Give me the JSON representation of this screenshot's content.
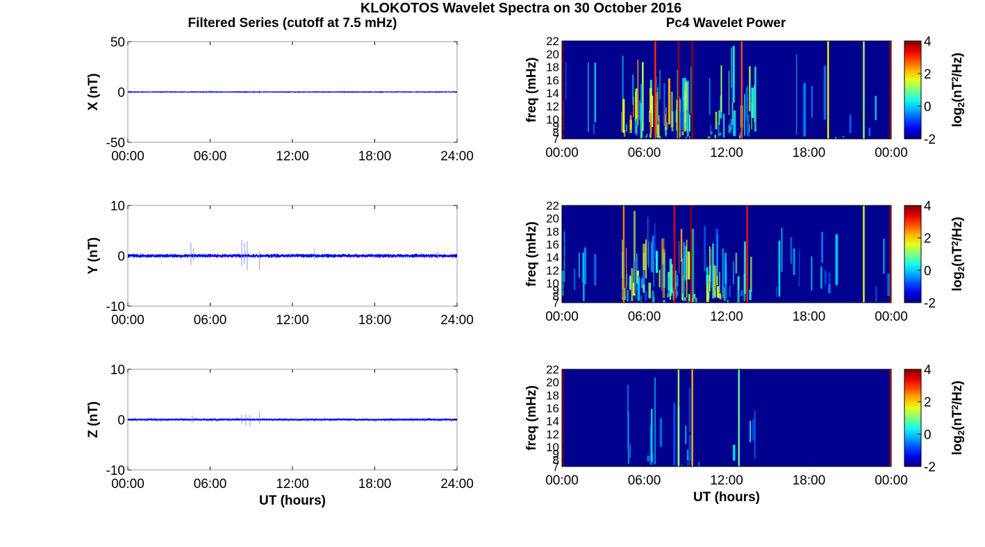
{
  "figure": {
    "title": "KLOKOTOS Wavelet Spectra on 30 October 2016",
    "left_column_title": "Filtered Series (cutoff at 7.5 mHz)",
    "right_column_title": "Pc4 Wavelet Power",
    "x_label": "UT (hours)"
  },
  "colors": {
    "trace": "#0000ff",
    "trace_burst": "#9aa6ff",
    "spectrum_background": "#00008f",
    "axis": "#000000",
    "panel_frame": "#999999"
  },
  "chart_data": [
    {
      "type": "line",
      "id": "x-series",
      "ylabel": "X (nT)",
      "ylim": [
        -50,
        50
      ],
      "yticks": [
        "-50",
        "0",
        "50"
      ],
      "xlim": [
        0,
        24
      ],
      "xticks": [
        "00:00",
        "06:00",
        "12:00",
        "18:00",
        "24:00"
      ],
      "baseline": 0,
      "noise_amplitude": 0.35,
      "bursts": [
        {
          "t": 4.7,
          "min": -0.8,
          "max": 1.0
        },
        {
          "t": 8.3,
          "min": -1.0,
          "max": 1.2
        },
        {
          "t": 8.6,
          "min": -1.2,
          "max": 1.4
        },
        {
          "t": 9.6,
          "min": -1.5,
          "max": 2.5
        },
        {
          "t": 13.6,
          "min": -0.6,
          "max": 0.8
        }
      ]
    },
    {
      "type": "line",
      "id": "y-series",
      "ylabel": "Y (nT)",
      "ylim": [
        -10,
        10
      ],
      "yticks": [
        "-10",
        "0",
        "10"
      ],
      "xlim": [
        0,
        24
      ],
      "xticks": [
        "00:00",
        "06:00",
        "12:00",
        "18:00",
        "24:00"
      ],
      "baseline": 0,
      "noise_amplitude": 0.3,
      "bursts": [
        {
          "t": 4.6,
          "min": -1.8,
          "max": 2.7
        },
        {
          "t": 4.8,
          "min": -0.9,
          "max": 1.6
        },
        {
          "t": 8.3,
          "min": -2.0,
          "max": 3.1
        },
        {
          "t": 8.5,
          "min": -1.6,
          "max": 2.5
        },
        {
          "t": 8.7,
          "min": -2.9,
          "max": 2.9
        },
        {
          "t": 9.6,
          "min": -2.8,
          "max": 0.7
        },
        {
          "t": 13.6,
          "min": -0.7,
          "max": 1.3
        },
        {
          "t": 22.6,
          "min": -0.5,
          "max": 0.8
        }
      ]
    },
    {
      "type": "line",
      "id": "z-series",
      "ylabel": "Z (nT)",
      "ylim": [
        -10,
        10
      ],
      "yticks": [
        "-10",
        "0",
        "10"
      ],
      "xlim": [
        0,
        24
      ],
      "xticks": [
        "00:00",
        "06:00",
        "12:00",
        "18:00",
        "24:00"
      ],
      "xlabel": "UT (hours)",
      "baseline": 0,
      "noise_amplitude": 0.15,
      "bursts": [
        {
          "t": 4.7,
          "min": -0.7,
          "max": 0.8
        },
        {
          "t": 8.3,
          "min": -0.9,
          "max": 1.0
        },
        {
          "t": 8.6,
          "min": -1.2,
          "max": 1.1
        },
        {
          "t": 8.9,
          "min": -1.3,
          "max": 0.9
        },
        {
          "t": 9.6,
          "min": -0.8,
          "max": 1.6
        },
        {
          "t": 13.0,
          "min": -0.5,
          "max": 0.5
        }
      ]
    },
    {
      "type": "heatmap",
      "id": "x-wavelet",
      "ylabel": "freq (mHz)",
      "ylim": [
        7,
        22
      ],
      "yticks": [
        "7",
        "8",
        "9",
        "10",
        "12",
        "14",
        "16",
        "18",
        "20",
        "22"
      ],
      "xlim": [
        0,
        24
      ],
      "xticks": [
        "00:00",
        "06:00",
        "12:00",
        "18:00",
        "00:00"
      ],
      "colorbar": {
        "label_base": "log",
        "label_sub": "2",
        "label_open": "(nT",
        "label_sup": "2",
        "label_close": "/Hz)",
        "ticks": [
          "-2",
          "0",
          "2",
          "4"
        ],
        "range": [
          -2,
          4
        ]
      },
      "active_windows": [
        {
          "start": 0.0,
          "end": 0.3,
          "density": 0.6
        },
        {
          "start": 0.8,
          "end": 2.5,
          "density": 0.15
        },
        {
          "start": 4.3,
          "end": 9.8,
          "density": 1.0
        },
        {
          "start": 10.3,
          "end": 14.2,
          "density": 0.7
        },
        {
          "start": 14.8,
          "end": 24.0,
          "density": 0.08
        }
      ],
      "stripes": [
        {
          "t": 6.8,
          "power": 3.0
        },
        {
          "t": 8.5,
          "power": 3.8
        },
        {
          "t": 9.5,
          "power": 3.9
        },
        {
          "t": 13.1,
          "power": 2.8
        },
        {
          "t": 19.4,
          "power": 1.8
        },
        {
          "t": 22.0,
          "power": 1.2
        },
        {
          "t": 0.05,
          "power": 3.9
        },
        {
          "t": 23.95,
          "power": 3.6
        }
      ]
    },
    {
      "type": "heatmap",
      "id": "y-wavelet",
      "ylabel": "freq (mHz)",
      "ylim": [
        7,
        22
      ],
      "yticks": [
        "7",
        "8",
        "9",
        "10",
        "12",
        "14",
        "16",
        "18",
        "20",
        "22"
      ],
      "xlim": [
        0,
        24
      ],
      "xticks": [
        "00:00",
        "06:00",
        "12:00",
        "18:00",
        "00:00"
      ],
      "colorbar": {
        "label_base": "log",
        "label_sub": "2",
        "label_open": "(nT",
        "label_sup": "2",
        "label_close": "/Hz)",
        "ticks": [
          "-2",
          "0",
          "2",
          "4"
        ],
        "range": [
          -2,
          4
        ]
      },
      "active_windows": [
        {
          "start": 0.0,
          "end": 0.3,
          "density": 0.5
        },
        {
          "start": 0.8,
          "end": 2.6,
          "density": 0.25
        },
        {
          "start": 4.4,
          "end": 9.8,
          "density": 1.0
        },
        {
          "start": 10.3,
          "end": 14.0,
          "density": 0.8
        },
        {
          "start": 14.6,
          "end": 24.0,
          "density": 0.12
        }
      ],
      "stripes": [
        {
          "t": 4.5,
          "power": 2.5
        },
        {
          "t": 8.2,
          "power": 3.4
        },
        {
          "t": 9.4,
          "power": 3.9
        },
        {
          "t": 13.5,
          "power": 3.2
        },
        {
          "t": 22.0,
          "power": 1.6
        },
        {
          "t": 23.95,
          "power": 3.6
        }
      ]
    },
    {
      "type": "heatmap",
      "id": "z-wavelet",
      "ylabel": "freq (mHz)",
      "ylim": [
        7,
        22
      ],
      "yticks": [
        "7",
        "8",
        "9",
        "10",
        "12",
        "14",
        "16",
        "18",
        "20",
        "22"
      ],
      "xlim": [
        0,
        24
      ],
      "xticks": [
        "00:00",
        "06:00",
        "12:00",
        "18:00",
        "00:00"
      ],
      "xlabel": "UT (hours)",
      "colorbar": {
        "label_base": "log",
        "label_sub": "2",
        "label_open": "(nT",
        "label_sup": "2",
        "label_close": "/Hz)",
        "ticks": [
          "-2",
          "0",
          "2",
          "4"
        ],
        "range": [
          -2,
          4
        ]
      },
      "active_windows": [
        {
          "start": 4.5,
          "end": 10.0,
          "density": 0.25
        },
        {
          "start": 12.5,
          "end": 14.5,
          "density": 0.15
        }
      ],
      "stripes": [
        {
          "t": 8.5,
          "power": 1.2
        },
        {
          "t": 9.5,
          "power": 2.2
        },
        {
          "t": 12.9,
          "power": 0.8
        },
        {
          "t": 0.05,
          "power": 3.8
        },
        {
          "t": 23.95,
          "power": 3.4
        }
      ]
    }
  ]
}
